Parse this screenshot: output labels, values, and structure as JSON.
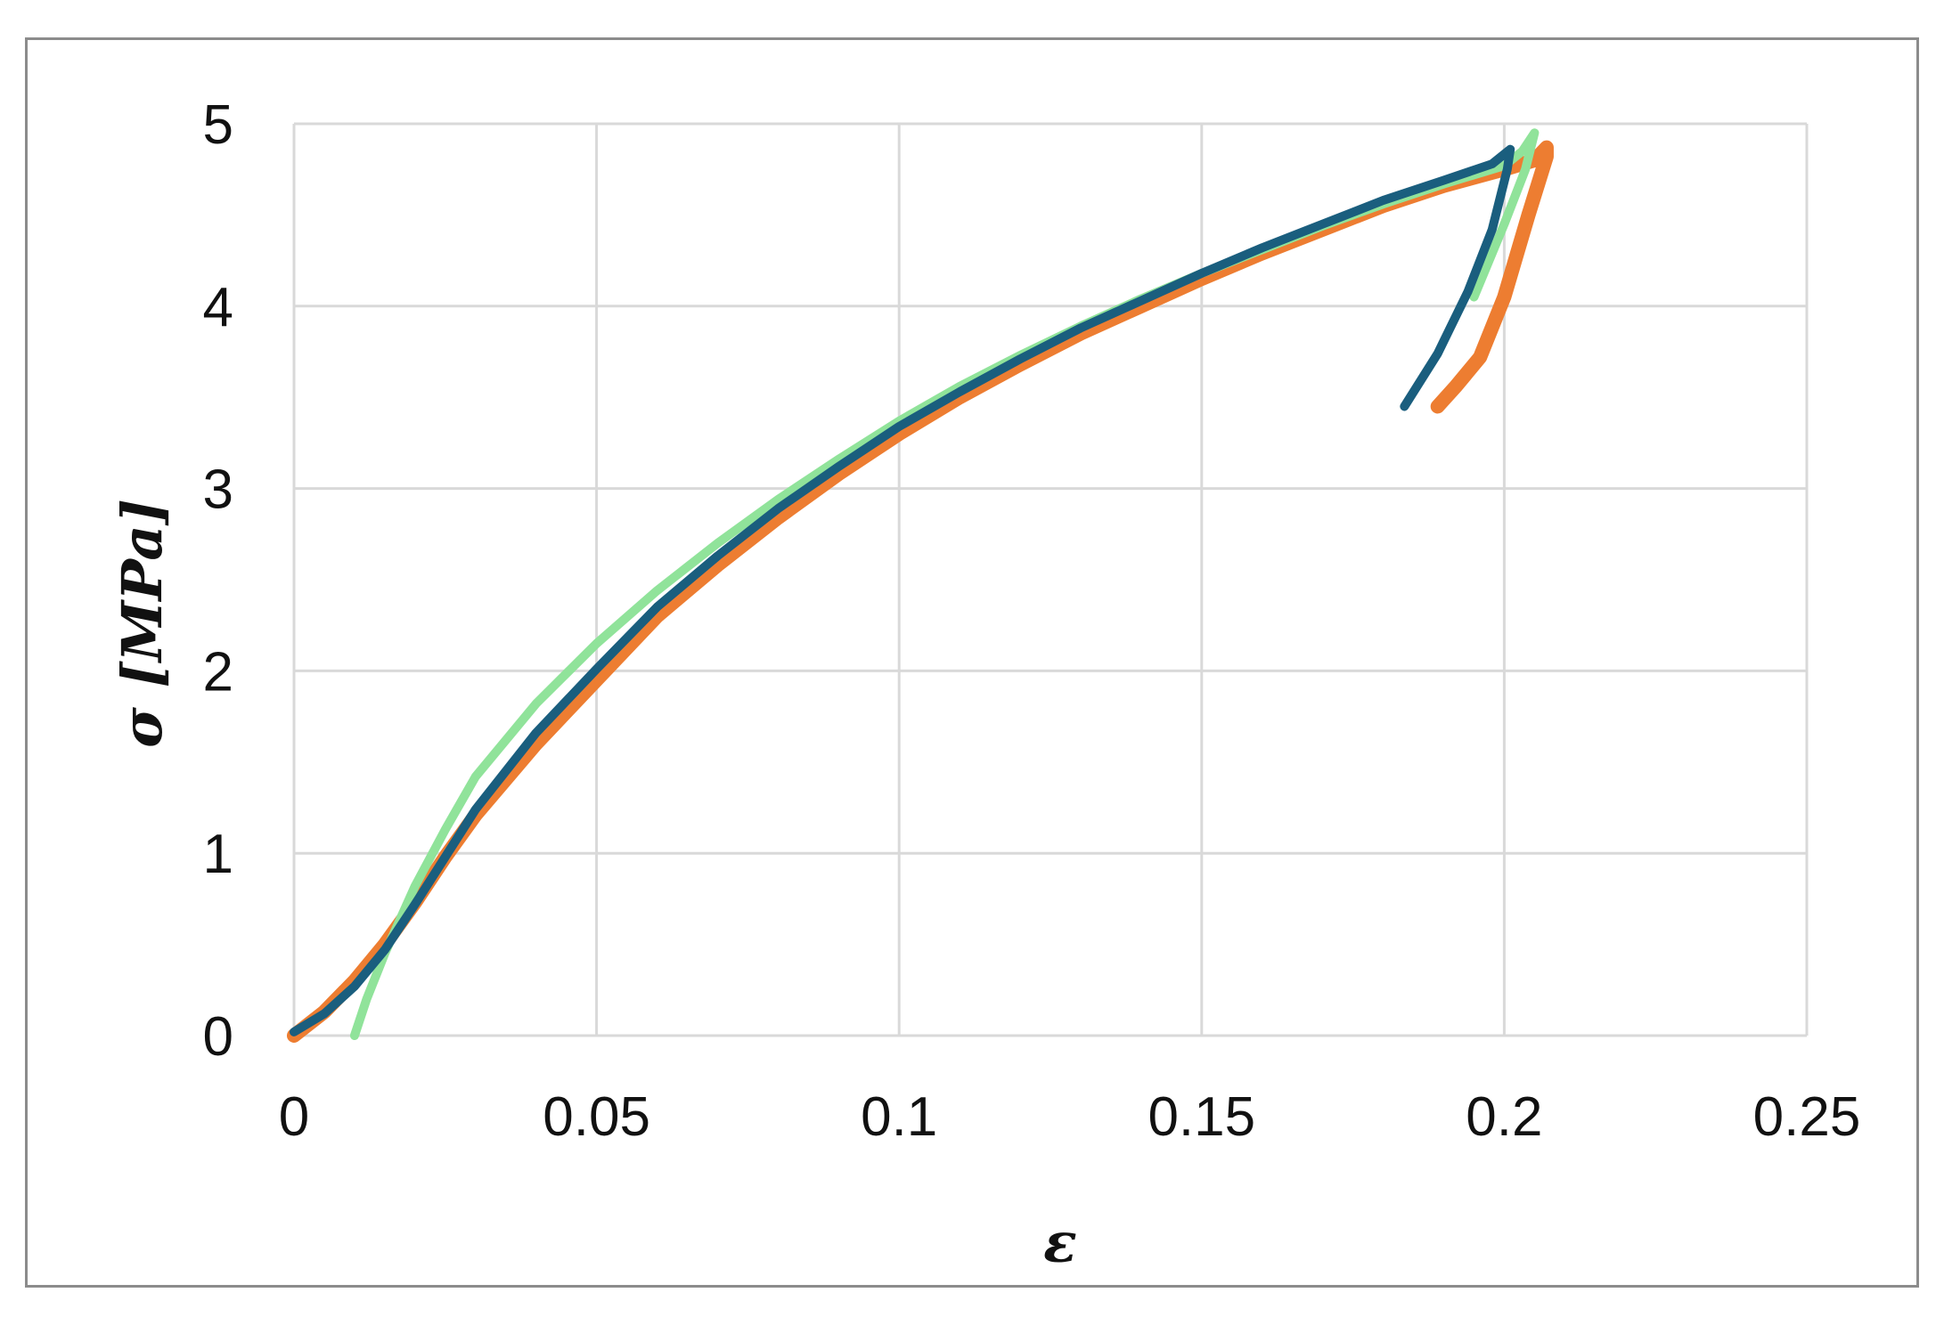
{
  "chart_data": {
    "type": "line",
    "xlabel": "ε",
    "ylabel": "σ [MPa]",
    "xlim": [
      0,
      0.25
    ],
    "ylim": [
      0,
      5
    ],
    "x_ticks": [
      "0",
      "0.05",
      "0.1",
      "0.15",
      "0.2",
      "0.25"
    ],
    "y_ticks": [
      "0",
      "1",
      "2",
      "3",
      "4",
      "5"
    ],
    "grid": true,
    "legend": "none",
    "series": [
      {
        "color": "#ed7d31",
        "line_width": 16,
        "x": [
          0,
          0.005,
          0.01,
          0.015,
          0.02,
          0.025,
          0.03,
          0.04,
          0.05,
          0.06,
          0.07,
          0.08,
          0.09,
          0.1,
          0.11,
          0.12,
          0.13,
          0.14,
          0.15,
          0.16,
          0.17,
          0.18,
          0.19,
          0.2,
          0.205,
          0.207,
          0.207,
          0.204,
          0.2,
          0.196,
          0.192,
          0.189
        ],
        "y": [
          0,
          0.13,
          0.3,
          0.5,
          0.73,
          0.98,
          1.21,
          1.6,
          1.95,
          2.3,
          2.58,
          2.84,
          3.08,
          3.3,
          3.5,
          3.68,
          3.85,
          4.0,
          4.15,
          4.29,
          4.42,
          4.55,
          4.66,
          4.75,
          4.8,
          4.87,
          4.82,
          4.5,
          4.05,
          3.72,
          3.56,
          3.45
        ]
      },
      {
        "color": "#90e39a",
        "line_width": 10,
        "x": [
          0.01,
          0.012,
          0.015,
          0.02,
          0.025,
          0.03,
          0.04,
          0.05,
          0.06,
          0.07,
          0.08,
          0.09,
          0.1,
          0.11,
          0.12,
          0.13,
          0.14,
          0.15,
          0.16,
          0.17,
          0.18,
          0.19,
          0.2,
          0.203,
          0.205,
          0.2035,
          0.2,
          0.195
        ],
        "y": [
          0,
          0.2,
          0.45,
          0.82,
          1.13,
          1.42,
          1.82,
          2.15,
          2.44,
          2.7,
          2.94,
          3.16,
          3.37,
          3.56,
          3.73,
          3.89,
          4.04,
          4.18,
          4.31,
          4.44,
          4.56,
          4.67,
          4.77,
          4.85,
          4.95,
          4.75,
          4.45,
          4.05
        ]
      },
      {
        "color": "#1a5e7e",
        "line_width": 10,
        "x": [
          0,
          0.005,
          0.01,
          0.015,
          0.02,
          0.025,
          0.03,
          0.04,
          0.05,
          0.06,
          0.07,
          0.08,
          0.09,
          0.1,
          0.11,
          0.12,
          0.13,
          0.14,
          0.15,
          0.16,
          0.17,
          0.18,
          0.19,
          0.198,
          0.201,
          0.2005,
          0.198,
          0.194,
          0.189,
          0.1835
        ],
        "y": [
          0.02,
          0.12,
          0.27,
          0.47,
          0.72,
          0.98,
          1.24,
          1.66,
          2.01,
          2.35,
          2.63,
          2.89,
          3.12,
          3.34,
          3.53,
          3.71,
          3.88,
          4.03,
          4.18,
          4.32,
          4.45,
          4.58,
          4.69,
          4.78,
          4.86,
          4.75,
          4.42,
          4.08,
          3.74,
          3.45
        ]
      }
    ]
  }
}
